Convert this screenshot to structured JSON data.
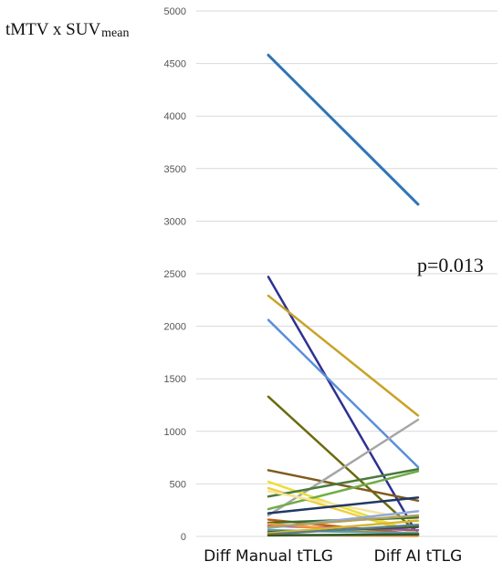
{
  "chart_data": {
    "type": "line",
    "ylabel_main": "tMTV x SUV",
    "ylabel_sub": "mean",
    "categories": [
      "Diff Manual tTLG",
      "Diff AI tTLG"
    ],
    "ylim": [
      0,
      5000
    ],
    "yticks": [
      0,
      500,
      1000,
      1500,
      2000,
      2500,
      3000,
      3500,
      4000,
      4500,
      5000
    ],
    "grid": true,
    "annotation": "p=0.013",
    "series": [
      {
        "color": "#2f75b5",
        "values": [
          4580,
          3160
        ]
      },
      {
        "color": "#2e3192",
        "values": [
          2470,
          10
        ]
      },
      {
        "color": "#c9a227",
        "values": [
          2290,
          1150
        ]
      },
      {
        "color": "#5b8fd9",
        "values": [
          2060,
          660
        ]
      },
      {
        "color": "#6b6b0f",
        "values": [
          1330,
          30
        ]
      },
      {
        "color": "#7f5a1c",
        "values": [
          630,
          340
        ]
      },
      {
        "color": "#a6a6a6",
        "values": [
          200,
          1110
        ]
      },
      {
        "color": "#e8e03a",
        "values": [
          520,
          30
        ]
      },
      {
        "color": "#f0d040",
        "values": [
          460,
          20
        ]
      },
      {
        "color": "#4a7a3a",
        "values": [
          380,
          640
        ]
      },
      {
        "color": "#70ad47",
        "values": [
          260,
          620
        ]
      },
      {
        "color": "#f5e6a0",
        "values": [
          430,
          150
        ]
      },
      {
        "color": "#203864",
        "values": [
          220,
          370
        ]
      },
      {
        "color": "#c55a11",
        "values": [
          160,
          20
        ]
      },
      {
        "color": "#3a6e2e",
        "values": [
          130,
          180
        ]
      },
      {
        "color": "#9e4fb0",
        "values": [
          100,
          60
        ]
      },
      {
        "color": "#ff9933",
        "values": [
          120,
          10
        ]
      },
      {
        "color": "#8faadc",
        "values": [
          80,
          240
        ]
      },
      {
        "color": "#b0a060",
        "values": [
          90,
          200
        ]
      },
      {
        "color": "#59a2a8",
        "values": [
          60,
          30
        ]
      },
      {
        "color": "#375623",
        "values": [
          40,
          90
        ]
      },
      {
        "color": "#d4b82e",
        "values": [
          30,
          150
        ]
      },
      {
        "color": "#5a7d8c",
        "values": [
          20,
          110
        ]
      },
      {
        "color": "#ed7d31",
        "values": [
          15,
          5
        ]
      },
      {
        "color": "#2d5a27",
        "values": [
          10,
          20
        ]
      }
    ]
  }
}
